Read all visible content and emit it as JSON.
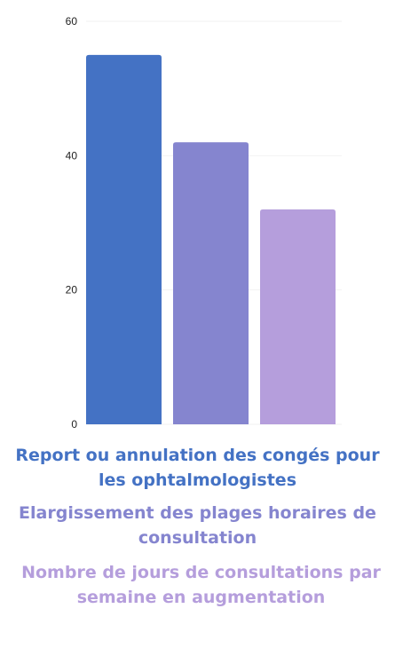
{
  "chart_data": {
    "type": "bar",
    "categories": [
      "Report ou annulation des congés pour les ophtalmologistes",
      "Elargissement des plages horaires de consultation",
      "Nombre de jours de consultations par semaine en augmentation"
    ],
    "values": [
      55,
      42,
      32
    ],
    "colors": [
      "#4472c4",
      "#8585cf",
      "#b59edc"
    ],
    "ylim": [
      0,
      60
    ],
    "yticks": [
      0,
      20,
      40,
      60
    ],
    "grid": true,
    "legend_position": "bottom",
    "title": "",
    "xlabel": "",
    "ylabel": ""
  },
  "legend": [
    {
      "label": "Report ou annulation des congés pour les ophtalmologistes",
      "color": "#4472c4"
    },
    {
      "label": "Elargissement des plages horaires de consultation",
      "color": "#8585cf"
    },
    {
      "label": "Nombre de jours de consultations par semaine en augmentation",
      "color": "#b59edc"
    }
  ]
}
